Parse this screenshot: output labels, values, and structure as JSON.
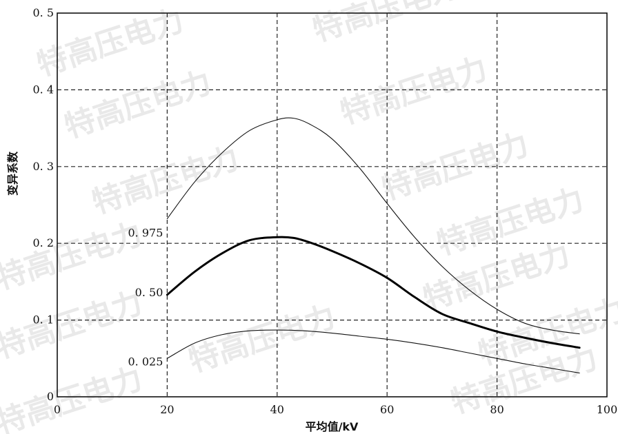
{
  "chart_data": {
    "type": "line",
    "xlabel": "平均值/kV",
    "ylabel": "变异系数",
    "xlim": [
      0,
      100
    ],
    "ylim": [
      0,
      0.5
    ],
    "x_ticks": [
      "0",
      "20",
      "40",
      "60",
      "80",
      "100"
    ],
    "y_ticks": [
      "0",
      "0.1",
      "0.2",
      "0.3",
      "0.4",
      "0.5"
    ],
    "grid": true,
    "series": [
      {
        "name": "0.975",
        "x": [
          20,
          25,
          30,
          35,
          40,
          43,
          46,
          50,
          55,
          60,
          65,
          70,
          75,
          80,
          85,
          90,
          95
        ],
        "y": [
          0.232,
          0.28,
          0.318,
          0.347,
          0.361,
          0.363,
          0.355,
          0.336,
          0.298,
          0.252,
          0.208,
          0.17,
          0.139,
          0.114,
          0.096,
          0.087,
          0.082
        ],
        "color": "#111111",
        "width": 1.1
      },
      {
        "name": "0.50",
        "x": [
          20,
          25,
          30,
          35,
          40,
          43,
          46,
          50,
          55,
          60,
          65,
          70,
          75,
          80,
          85,
          90,
          95
        ],
        "y": [
          0.133,
          0.163,
          0.187,
          0.204,
          0.208,
          0.207,
          0.201,
          0.19,
          0.174,
          0.155,
          0.13,
          0.108,
          0.096,
          0.085,
          0.077,
          0.07,
          0.064
        ],
        "color": "#000000",
        "width": 3
      },
      {
        "name": "0.025",
        "x": [
          20,
          25,
          30,
          35,
          40,
          45,
          50,
          55,
          60,
          65,
          70,
          75,
          80,
          85,
          90,
          95
        ],
        "y": [
          0.05,
          0.07,
          0.081,
          0.086,
          0.087,
          0.086,
          0.083,
          0.079,
          0.075,
          0.07,
          0.064,
          0.057,
          0.05,
          0.043,
          0.037,
          0.031
        ],
        "color": "#111111",
        "width": 1.1
      }
    ],
    "curve_labels": [
      {
        "text": "0. 975",
        "series": "0.975"
      },
      {
        "text": "0. 50",
        "series": "0.50"
      },
      {
        "text": "0. 025",
        "series": "0.025"
      }
    ],
    "y_tick_text": [
      "0",
      "0. 1",
      "0. 2",
      "0. 3",
      "0. 4",
      "0. 5"
    ]
  },
  "watermark_text": "特高压电力"
}
